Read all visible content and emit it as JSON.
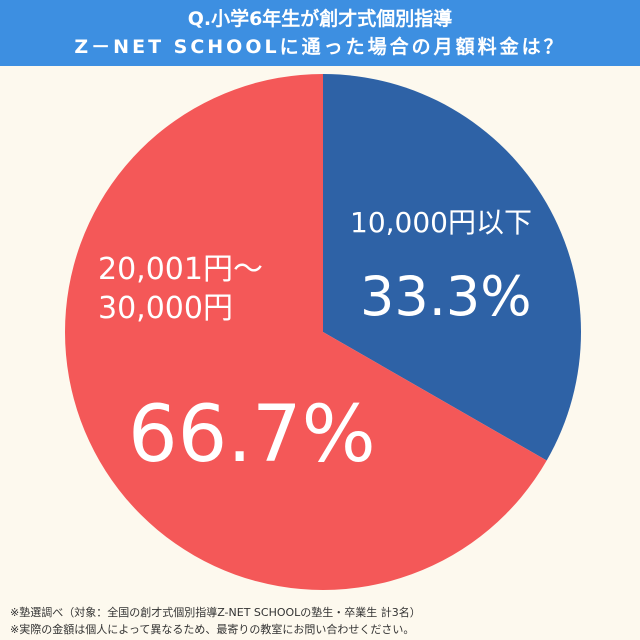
{
  "chart_data": {
    "type": "pie",
    "title": "Q.小学6年生が創才式個別指導",
    "subtitle": "Z－NET SCHOOLに通った場合の月額料金は？",
    "categories": [
      "10,000円以下",
      "20,001円～30,000円"
    ],
    "values": [
      33.3,
      66.7
    ],
    "value_labels": [
      "33.3%",
      "66.7%"
    ],
    "colors": [
      "#2e62a6",
      "#f45858"
    ],
    "notes": [
      "※塾選調べ（対象：全国の創才式個別指導Z-NET SCHOOLの塾生・卒業生 計3名）",
      "※実際の金額は個人によって異なるため、最寄りの教室にお問い合わせください。"
    ]
  }
}
